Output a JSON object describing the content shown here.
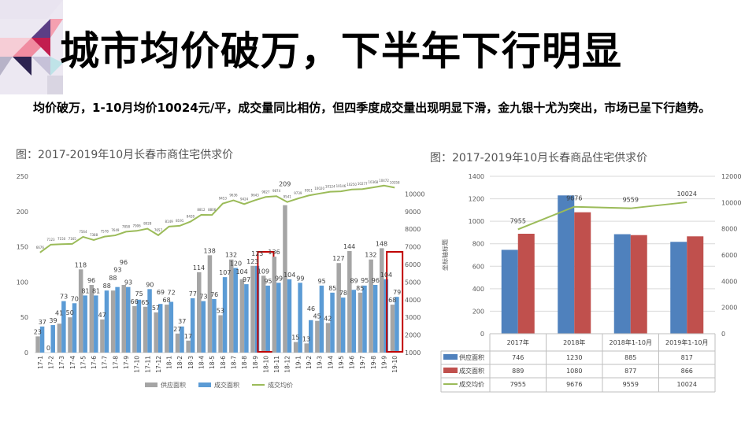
{
  "slide": {
    "title": "城市均价破万，下半年下行明显",
    "subtitle": "均价破万，1-10月均价10024元/平，成交量同比相仿，但四季度成交量出现明显下滑，金九银十尤为突出，市场已呈下行趋势。"
  },
  "chart_data": [
    {
      "type": "bar",
      "title": "图：2017-2019年10月长春市商住宅供求价",
      "categories": [
        "17-1",
        "17-2",
        "17-3",
        "17-4",
        "17-5",
        "17-6",
        "17-7",
        "17-8",
        "17-9",
        "17-10",
        "17-11",
        "17-12",
        "18-1",
        "18-2",
        "18-3",
        "18-4",
        "18-5",
        "18-6",
        "18-7",
        "18-8",
        "18-9",
        "18-10",
        "18-11",
        "18-12",
        "19-1",
        "19-2",
        "19-3",
        "19-4",
        "19-5",
        "19-6",
        "19-7",
        "19-8",
        "19-9",
        "19-10"
      ],
      "series": [
        {
          "name": "供应面积",
          "type": "bar",
          "axis": "left",
          "color": "#a5a5a5",
          "values": [
            23,
            0,
            41,
            50,
            118,
            96,
            47,
            88,
            96,
            66,
            65,
            57,
            68,
            27,
            17,
            114,
            138,
            53,
            132,
            104,
            123,
            109,
            136,
            209,
            15,
            13,
            45,
            42,
            127,
            144,
            85,
            132,
            148,
            68
          ]
        },
        {
          "name": "成交面积",
          "type": "bar",
          "axis": "left",
          "color": "#5b9bd5",
          "values": [
            37,
            39,
            73,
            70,
            81,
            81,
            88,
            93,
            93,
            75,
            90,
            69,
            72,
            37,
            77,
            73,
            76,
            107,
            120,
            97,
            123,
            95,
            99,
            104,
            99,
            46,
            95,
            85,
            78,
            89,
            95,
            96,
            104,
            79
          ]
        },
        {
          "name": "成交均价",
          "type": "line",
          "axis": "right",
          "color": "#9bbb59",
          "values": [
            6676,
            7123,
            7150,
            7165,
            7564,
            7388,
            7578,
            7649,
            7858,
            7906,
            8028,
            7657,
            8149,
            8191,
            8428,
            8812,
            8806,
            9453,
            9636,
            9424,
            9643,
            9827,
            9874,
            9541,
            9739,
            9911,
            10020,
            10124,
            10146,
            10250,
            10277,
            10368,
            10472,
            10358
          ]
        }
      ],
      "ylim": [
        0,
        250
      ],
      "yticks": [
        0,
        50,
        100,
        150,
        200,
        250
      ],
      "y2lim": [
        1000,
        11000
      ],
      "y2ticks": [
        1000,
        2000,
        3000,
        4000,
        5000,
        6000,
        7000,
        8000,
        9000,
        10000
      ],
      "highlighted": [
        "18-10",
        "19-10"
      ],
      "highlight_color": "#c00000",
      "legend": "bottom",
      "grid": false
    },
    {
      "type": "bar",
      "title": "图：2017-2019年10月长春商品住宅供求价",
      "categories": [
        "2017年",
        "2018年",
        "2018年1-10月",
        "2019年1-10月"
      ],
      "ylabel": "坐标轴标题",
      "series": [
        {
          "name": "供应面积",
          "type": "bar",
          "axis": "left",
          "color": "#4f81bd",
          "values": [
            746,
            1230,
            885,
            817
          ]
        },
        {
          "name": "成交面积",
          "type": "bar",
          "axis": "left",
          "color": "#c0504d",
          "values": [
            889,
            1080,
            877,
            866
          ]
        },
        {
          "name": "成交均价",
          "type": "line",
          "axis": "right",
          "color": "#9bbb59",
          "values": [
            7955,
            9676,
            9559,
            10024
          ]
        }
      ],
      "ylim": [
        0,
        1400
      ],
      "yticks": [
        0,
        200,
        400,
        600,
        800,
        1000,
        1200,
        1400
      ],
      "y2lim": [
        0,
        12000
      ],
      "y2ticks": [
        0,
        2000,
        4000,
        6000,
        8000,
        10000,
        12000
      ],
      "grid": true,
      "legend": "data-table"
    }
  ]
}
